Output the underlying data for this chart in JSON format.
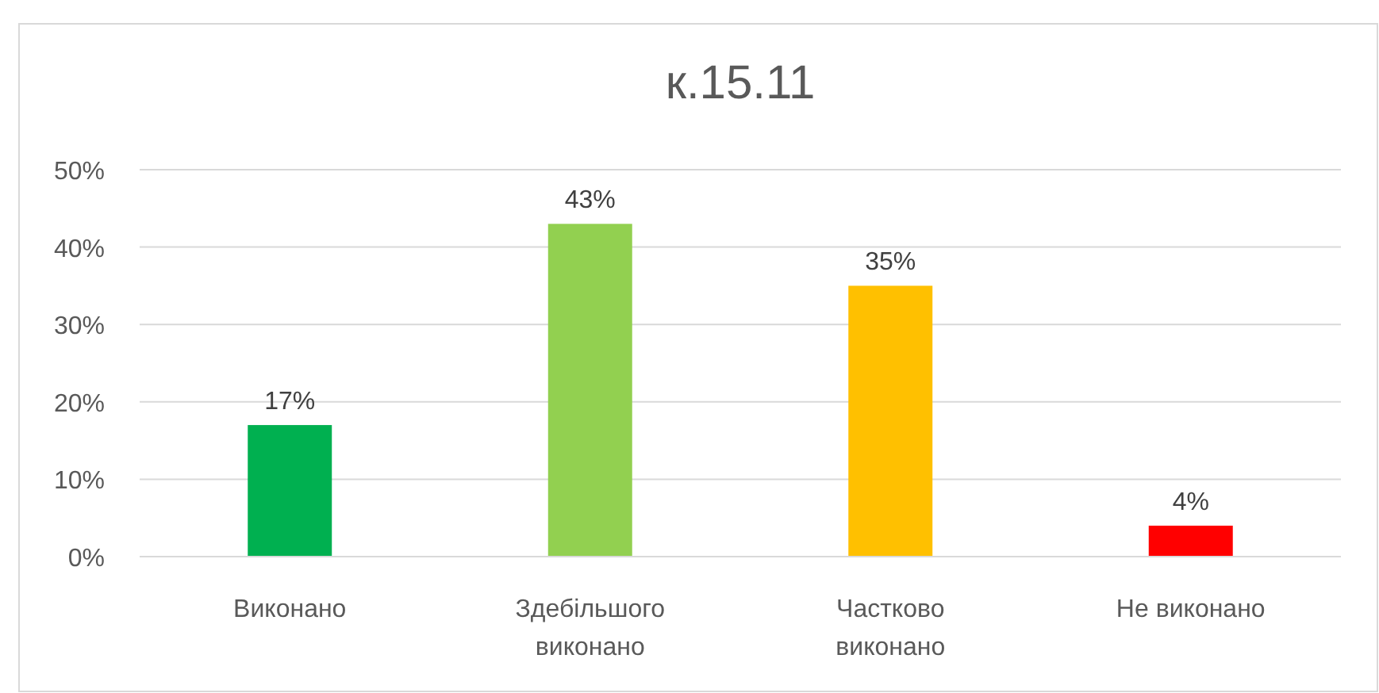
{
  "chart_data": {
    "type": "bar",
    "title": "к.15.11",
    "categories": [
      "Виконано",
      "Здебільшого виконано",
      "Частково виконано",
      "Не виконано"
    ],
    "values": [
      17,
      43,
      35,
      4
    ],
    "colors": [
      "#00b050",
      "#92d050",
      "#ffc000",
      "#ff0000"
    ],
    "value_labels": [
      "17%",
      "43%",
      "35%",
      "4%"
    ],
    "ylim": [
      0,
      50
    ],
    "yticks": [
      {
        "value": 0,
        "label": "0%"
      },
      {
        "value": 10,
        "label": "10%"
      },
      {
        "value": 20,
        "label": "20%"
      },
      {
        "value": 30,
        "label": "30%"
      },
      {
        "value": 40,
        "label": "40%"
      },
      {
        "value": 50,
        "label": "50%"
      }
    ],
    "grid": "y"
  }
}
